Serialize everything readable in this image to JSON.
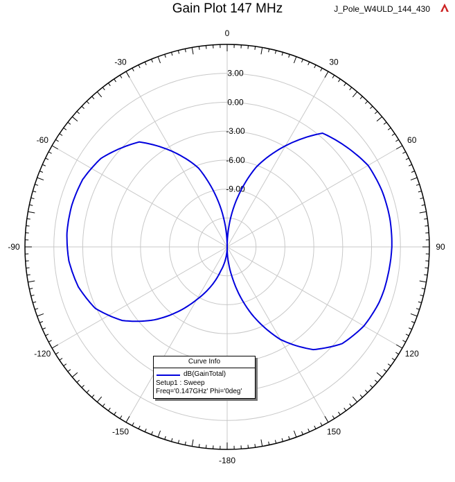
{
  "title": "Gain Plot 147 MHz",
  "project_label": "J_Pole_W4ULD_144_430",
  "logo_icon": "ansys-logo-icon",
  "colors": {
    "trace": "#0000dd",
    "grid": "#c8c8c8",
    "outer_ring": "#000000",
    "logo": "#cc2222"
  },
  "legend": {
    "title": "Curve Info",
    "entry": "dB(GainTotal)",
    "setup": "Setup1 : Sweep",
    "params": "Freq='0.147GHz' Phi='0deg'"
  },
  "chart_data": {
    "type": "polar",
    "title": "Gain Plot 147 MHz",
    "radial_ticks": [
      "3.00",
      "0.00",
      "-3.00",
      "-6.00",
      "-9.00"
    ],
    "radial_tick_values": [
      3,
      0,
      -3,
      -6,
      -9
    ],
    "radial_range": [
      -15,
      6
    ],
    "angle_labels": [
      "0",
      "30",
      "60",
      "90",
      "120",
      "150",
      "-180",
      "-150",
      "-120",
      "-90",
      "-60",
      "-30"
    ],
    "angle_label_degrees": [
      0,
      30,
      60,
      90,
      120,
      150,
      180,
      -150,
      -120,
      -90,
      -60,
      -30
    ],
    "angle_direction": "clockwise",
    "zero_location": "top",
    "grid": true,
    "legend_placement": "bottom-center",
    "series": [
      {
        "name": "dB(GainTotal)",
        "pattern": "tilted figure-eight",
        "theta_deg": [
          0,
          20,
          40,
          60,
          70,
          80,
          90,
          100,
          105,
          110,
          120,
          130,
          140,
          150,
          160,
          170,
          180
        ],
        "gain_db": [
          -15,
          -6.2,
          0.4,
          1.9,
          2.1,
          2.15,
          2.1,
          1.95,
          1.9,
          1.8,
          1.4,
          0.6,
          -1.1,
          -3.9,
          -7.6,
          -11.6,
          -15
        ],
        "theta_neg_deg": [
          -20,
          -40,
          -55,
          -65,
          -75,
          -85,
          -95,
          -105,
          -115,
          -125,
          -135,
          -150,
          -165
        ],
        "gain_neg_db": [
          -6.3,
          -0.8,
          1.0,
          1.55,
          1.7,
          1.7,
          1.5,
          1.0,
          0.1,
          -1.7,
          -4.3,
          -8.7,
          -12.4
        ]
      }
    ]
  }
}
